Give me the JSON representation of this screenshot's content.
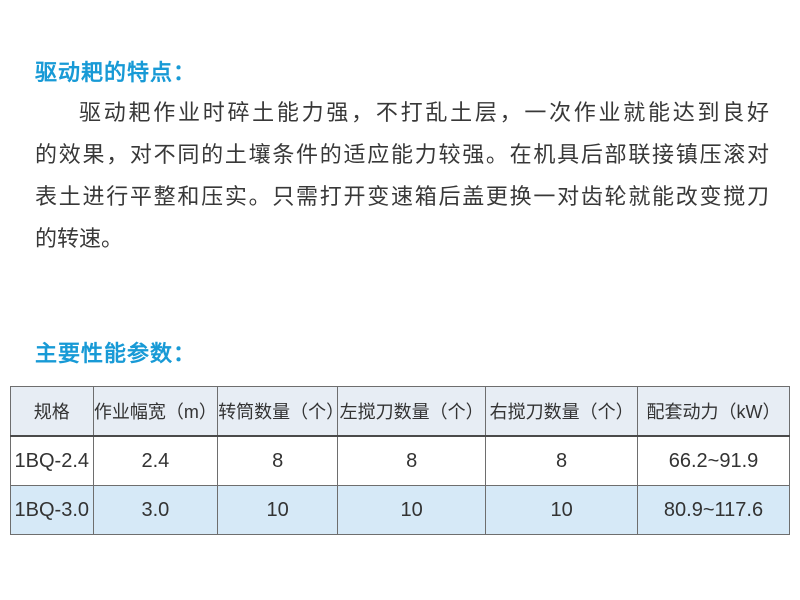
{
  "colors": {
    "accent_blue": "#189ad6",
    "body_text": "#383838",
    "table_header_bg": "#e7edf4",
    "table_alt_row_bg": "#d6e9f7",
    "table_border": "#6e6e6e"
  },
  "features_section": {
    "heading": "驱动耙的特点：",
    "paragraph_lines": [
      "驱动耙作业时碎土能力强，不打乱土层，一次作业就能达到良好",
      "的效果，对不同的土壤条件的适应能力较强。在机具后部联接镇压滚对",
      "表土进行平整和压实。只需打开变速箱后盖更换一对齿轮就能改变搅刀",
      "的转速。"
    ]
  },
  "specs_section": {
    "heading": "主要性能参数："
  },
  "table": {
    "headers": [
      "规格",
      "作业幅宽（m）",
      "转筒数量（个）",
      "左搅刀数量（个）",
      "右搅刀数量（个）",
      "配套动力（kW）"
    ],
    "rows": [
      [
        "1BQ-2.4",
        "2.4",
        "8",
        "8",
        "8",
        "66.2~91.9"
      ],
      [
        "1BQ-3.0",
        "3.0",
        "10",
        "10",
        "10",
        "80.9~117.6"
      ]
    ]
  }
}
